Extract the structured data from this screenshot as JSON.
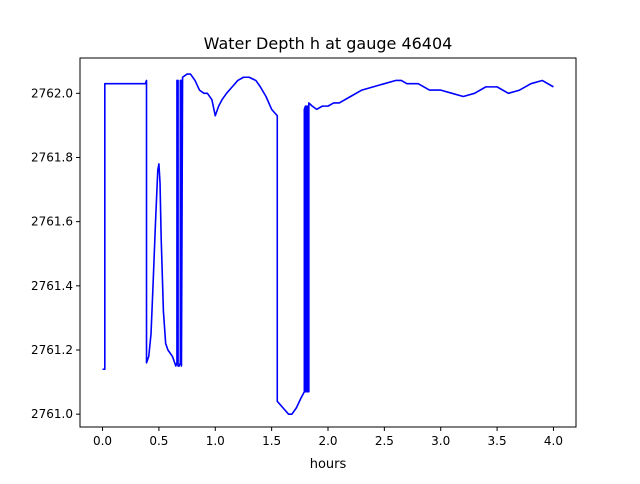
{
  "chart_data": {
    "type": "line",
    "title": "Water Depth h at gauge 46404",
    "xlabel": "hours",
    "ylabel": "",
    "xlim": [
      -0.2,
      4.2
    ],
    "ylim": [
      2760.96,
      2762.11
    ],
    "xticks": [
      0.0,
      0.5,
      1.0,
      1.5,
      2.0,
      2.5,
      3.0,
      3.5,
      4.0
    ],
    "xtick_labels": [
      "0.0",
      "0.5",
      "1.0",
      "1.5",
      "2.0",
      "2.5",
      "3.0",
      "3.5",
      "4.0"
    ],
    "yticks": [
      2761.0,
      2761.2,
      2761.4,
      2761.6,
      2761.8,
      2762.0
    ],
    "ytick_labels": [
      "2761.0",
      "2761.2",
      "2761.4",
      "2761.6",
      "2761.8",
      "2762.0"
    ],
    "grid": false,
    "series": [
      {
        "color": "#0000ff",
        "x": [
          0.0,
          0.02,
          0.02,
          0.1,
          0.2,
          0.3,
          0.38,
          0.39,
          0.39,
          0.41,
          0.43,
          0.45,
          0.47,
          0.49,
          0.5,
          0.51,
          0.52,
          0.54,
          0.56,
          0.58,
          0.62,
          0.65,
          0.66,
          0.66,
          0.67,
          0.67,
          0.68,
          0.69,
          0.69,
          0.7,
          0.7,
          0.71,
          0.75,
          0.78,
          0.82,
          0.86,
          0.9,
          0.93,
          0.97,
          1.0,
          1.03,
          1.06,
          1.1,
          1.15,
          1.2,
          1.25,
          1.3,
          1.36,
          1.4,
          1.45,
          1.5,
          1.55,
          1.55,
          1.6,
          1.65,
          1.68,
          1.72,
          1.76,
          1.79,
          1.79,
          1.8,
          1.8,
          1.81,
          1.81,
          1.82,
          1.82,
          1.83,
          1.83,
          1.86,
          1.9,
          1.95,
          2.0,
          2.05,
          2.1,
          2.2,
          2.3,
          2.4,
          2.5,
          2.6,
          2.65,
          2.7,
          2.8,
          2.9,
          3.0,
          3.1,
          3.2,
          3.3,
          3.4,
          3.5,
          3.6,
          3.7,
          3.8,
          3.9,
          4.0
        ],
        "y": [
          2761.14,
          2761.14,
          2762.03,
          2762.03,
          2762.03,
          2762.03,
          2762.03,
          2762.04,
          2761.16,
          2761.18,
          2761.25,
          2761.42,
          2761.6,
          2761.76,
          2761.78,
          2761.72,
          2761.55,
          2761.32,
          2761.22,
          2761.2,
          2761.18,
          2761.15,
          2761.16,
          2762.04,
          2762.04,
          2761.15,
          2761.15,
          2761.16,
          2762.04,
          2762.04,
          2761.15,
          2762.05,
          2762.06,
          2762.06,
          2762.04,
          2762.01,
          2762.0,
          2762.0,
          2761.98,
          2761.93,
          2761.96,
          2761.98,
          2762.0,
          2762.02,
          2762.04,
          2762.05,
          2762.05,
          2762.04,
          2762.02,
          2761.99,
          2761.95,
          2761.93,
          2761.04,
          2761.02,
          2761.0,
          2761.0,
          2761.02,
          2761.05,
          2761.07,
          2761.95,
          2761.96,
          2761.07,
          2761.07,
          2761.96,
          2761.96,
          2761.07,
          2761.07,
          2761.97,
          2761.96,
          2761.95,
          2761.96,
          2761.96,
          2761.97,
          2761.97,
          2761.99,
          2762.01,
          2762.02,
          2762.03,
          2762.04,
          2762.04,
          2762.03,
          2762.03,
          2762.01,
          2762.01,
          2762.0,
          2761.99,
          2762.0,
          2762.02,
          2762.02,
          2762.0,
          2762.01,
          2762.03,
          2762.04,
          2762.02
        ]
      }
    ]
  }
}
